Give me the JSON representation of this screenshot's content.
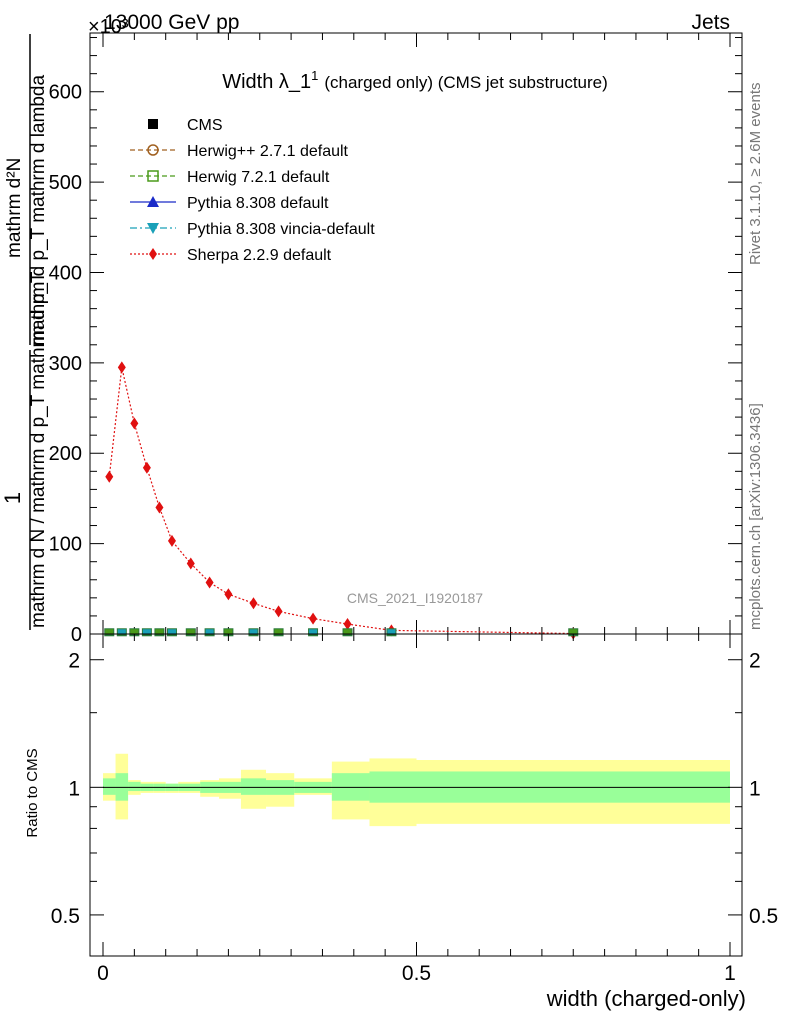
{
  "header": {
    "exponent": "×10³",
    "energy": "13000 GeV pp",
    "process": "Jets"
  },
  "side_labels": {
    "rivet": "Rivet 3.1.10, ≥ 2.6M events",
    "mcplots": "mcplots.cern.ch [arXiv:1306.3436]"
  },
  "watermark": "CMS_2021_I1920187",
  "chart_data": [
    {
      "type": "line",
      "title_main": "Width λ_1",
      "title_sup": "1",
      "title_rest": "(charged only) (CMS jet substructure)",
      "ylabel_top": "1",
      "ylabel_bottom": "mathrm d N / mathrm d p_T mathrm d p_T",
      "ylabel_num": "mathrm d²N",
      "ylabel_den": "mathrm d p_T mathrm d lambda",
      "xlim": [
        0,
        1
      ],
      "ylim": [
        0,
        665
      ],
      "yticks": [
        0,
        100,
        200,
        300,
        400,
        500,
        600
      ],
      "legend_position": "top-left",
      "legend": [
        {
          "name": "CMS",
          "color": "#000000",
          "marker": "square-filled",
          "line": "none"
        },
        {
          "name": "Herwig++ 2.7.1 default",
          "color": "#a06020",
          "marker": "circle-open",
          "line": "dashed"
        },
        {
          "name": "Herwig 7.2.1 default",
          "color": "#4a9a1a",
          "marker": "square-open",
          "line": "dashed"
        },
        {
          "name": "Pythia 8.308 default",
          "color": "#1a2ac8",
          "marker": "triangle-up",
          "line": "solid"
        },
        {
          "name": "Pythia 8.308 vincia-default",
          "color": "#1aa0b8",
          "marker": "triangle-down",
          "line": "dashdot"
        },
        {
          "name": "Sherpa 2.2.9 default",
          "color": "#e01010",
          "marker": "diamond",
          "line": "dotted"
        }
      ],
      "series": [
        {
          "name": "Sherpa 2.2.9 default",
          "x": [
            0.01,
            0.03,
            0.05,
            0.07,
            0.09,
            0.11,
            0.14,
            0.17,
            0.2,
            0.24,
            0.28,
            0.335,
            0.39,
            0.46,
            0.75
          ],
          "y": [
            174,
            295,
            233,
            184,
            140,
            103,
            78,
            57,
            44,
            34,
            25,
            17,
            11,
            4,
            0.5
          ]
        },
        {
          "name": "CMS",
          "x": [
            0.01,
            0.03,
            0.05,
            0.07,
            0.09,
            0.11,
            0.14,
            0.17,
            0.2,
            0.24,
            0.28,
            0.335,
            0.39,
            0.46,
            0.75
          ],
          "y": [
            0.8,
            0.8,
            0.8,
            0.8,
            0.8,
            0.8,
            0.8,
            0.8,
            0.8,
            0.8,
            0.8,
            0.8,
            0.8,
            0.8,
            0.8
          ]
        }
      ]
    },
    {
      "type": "area",
      "ylabel": "Ratio to CMS",
      "xlabel": "width (charged-only)",
      "scale": "log",
      "xlim": [
        0,
        1
      ],
      "ylim": [
        0.4,
        2.3
      ],
      "yticks": [
        0.5,
        1,
        2
      ],
      "xticks": [
        0,
        0.5,
        1
      ],
      "reference": 1,
      "bins": [
        {
          "lo": 0.0,
          "hi": 0.02,
          "stat": [
            0.96,
            1.05
          ],
          "total": [
            0.93,
            1.08
          ]
        },
        {
          "lo": 0.02,
          "hi": 0.04,
          "stat": [
            0.93,
            1.08
          ],
          "total": [
            0.84,
            1.2
          ]
        },
        {
          "lo": 0.04,
          "hi": 0.06,
          "stat": [
            0.98,
            1.03
          ],
          "total": [
            0.96,
            1.04
          ]
        },
        {
          "lo": 0.06,
          "hi": 0.08,
          "stat": [
            0.98,
            1.02
          ],
          "total": [
            0.97,
            1.03
          ]
        },
        {
          "lo": 0.08,
          "hi": 0.1,
          "stat": [
            0.98,
            1.02
          ],
          "total": [
            0.97,
            1.03
          ]
        },
        {
          "lo": 0.1,
          "hi": 0.12,
          "stat": [
            0.98,
            1.02
          ],
          "total": [
            0.97,
            1.02
          ]
        },
        {
          "lo": 0.12,
          "hi": 0.155,
          "stat": [
            0.98,
            1.02
          ],
          "total": [
            0.97,
            1.03
          ]
        },
        {
          "lo": 0.155,
          "hi": 0.185,
          "stat": [
            0.97,
            1.03
          ],
          "total": [
            0.95,
            1.04
          ]
        },
        {
          "lo": 0.185,
          "hi": 0.22,
          "stat": [
            0.97,
            1.03
          ],
          "total": [
            0.94,
            1.05
          ]
        },
        {
          "lo": 0.22,
          "hi": 0.26,
          "stat": [
            0.96,
            1.05
          ],
          "total": [
            0.89,
            1.1
          ]
        },
        {
          "lo": 0.26,
          "hi": 0.305,
          "stat": [
            0.96,
            1.04
          ],
          "total": [
            0.9,
            1.08
          ]
        },
        {
          "lo": 0.305,
          "hi": 0.365,
          "stat": [
            0.97,
            1.03
          ],
          "total": [
            0.96,
            1.05
          ]
        },
        {
          "lo": 0.365,
          "hi": 0.425,
          "stat": [
            0.93,
            1.08
          ],
          "total": [
            0.84,
            1.15
          ]
        },
        {
          "lo": 0.425,
          "hi": 0.5,
          "stat": [
            0.92,
            1.09
          ],
          "total": [
            0.81,
            1.17
          ]
        },
        {
          "lo": 0.5,
          "hi": 1.0,
          "stat": [
            0.92,
            1.09
          ],
          "total": [
            0.82,
            1.16
          ]
        }
      ]
    }
  ]
}
